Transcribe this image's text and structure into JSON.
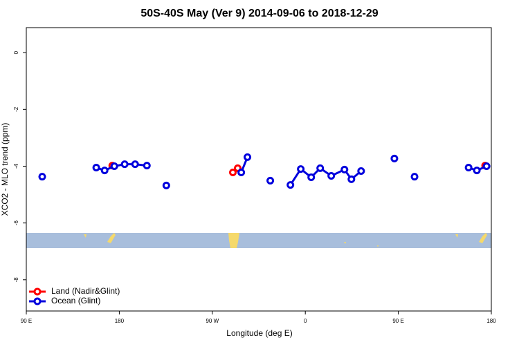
{
  "chart_data": {
    "type": "line",
    "title": "50S-40S May (Ver 9)   2014-09-06 to 2018-12-29",
    "x_label": "Longitude (deg E)",
    "y_label": "XCO2 - MLO trend (ppm)",
    "xlim": [
      90,
      540
    ],
    "ylim": [
      -9.1,
      0.88
    ],
    "xticks": [
      {
        "value": 90,
        "label": "90 E"
      },
      180,
      {
        "value": 270,
        "label": "90 W"
      },
      {
        "value": 360,
        "label": "0"
      },
      {
        "value": 450,
        "label": "90 E"
      },
      {
        "value": 540,
        "label": "180"
      }
    ],
    "yticks": [
      0,
      -2,
      -4,
      -6,
      -8
    ],
    "legend": "bottom-left",
    "series": [
      {
        "name": "Land (Nadir&Glint)",
        "color": "#ff0000",
        "x": [
          173.2,
          null,
          289.9,
          294.6,
          null,
          534.0
        ],
        "values": [
          -3.98,
          null,
          -4.22,
          -4.07,
          null,
          -3.98
        ]
      },
      {
        "name": "Ocean (Glint)",
        "color": "#0000dd",
        "x": [
          105.4,
          null,
          157.7,
          165.8,
          175.2,
          185.2,
          195.3,
          206.7,
          null,
          225.5,
          null,
          298.0,
          304.0,
          null,
          326.1,
          null,
          345.6,
          355.6,
          365.7,
          374.4,
          385.1,
          397.9,
          404.6,
          414.0,
          null,
          446.2,
          null,
          465.7,
          null,
          518.0,
          526.0,
          535.4
        ],
        "values": [
          -4.37,
          null,
          -4.05,
          -4.15,
          -4.0,
          -3.93,
          -3.93,
          -3.98,
          null,
          -4.68,
          null,
          -4.22,
          -3.68,
          null,
          -4.51,
          null,
          -4.66,
          -4.1,
          -4.39,
          -4.07,
          -4.34,
          -4.12,
          -4.46,
          -4.17,
          null,
          -3.73,
          null,
          -4.37,
          null,
          -4.05,
          -4.15,
          -4.0
        ]
      }
    ]
  }
}
